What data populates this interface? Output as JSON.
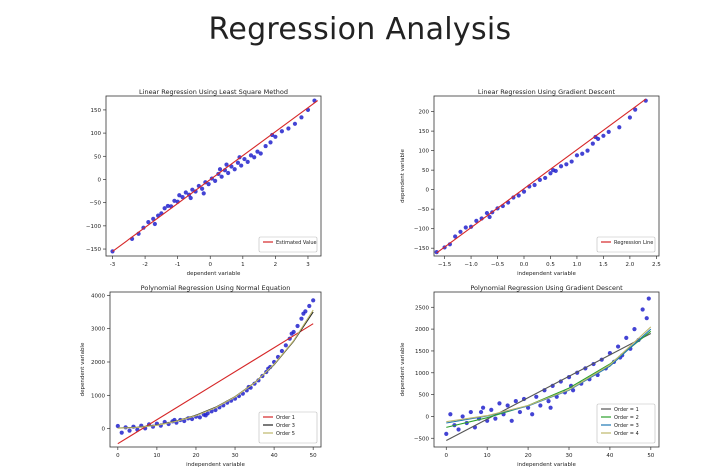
{
  "slide": {
    "title": "Regression Analysis"
  },
  "chart_data": [
    {
      "type": "scatter",
      "title": "Linear Regression Using Least Square Method",
      "xlabel": "dependent variable",
      "ylabel": "",
      "xlim": [
        -3.2,
        3.4
      ],
      "ylim": [
        -165,
        180
      ],
      "xticks": [
        -3,
        -2,
        -1,
        0,
        1,
        2,
        3
      ],
      "yticks": [
        -150,
        -100,
        -50,
        0,
        50,
        100,
        150
      ],
      "grid": false,
      "legend_position": "bottom-right",
      "points": [
        [
          -3.0,
          -155
        ],
        [
          -2.4,
          -128
        ],
        [
          -2.2,
          -117
        ],
        [
          -2.05,
          -104
        ],
        [
          -1.9,
          -92
        ],
        [
          -1.75,
          -85
        ],
        [
          -1.6,
          -78
        ],
        [
          -1.5,
          -73
        ],
        [
          -1.4,
          -62
        ],
        [
          -1.3,
          -57
        ],
        [
          -1.2,
          -58
        ],
        [
          -1.1,
          -46
        ],
        [
          -1.0,
          -48
        ],
        [
          -0.95,
          -34
        ],
        [
          -0.85,
          -38
        ],
        [
          -0.75,
          -28
        ],
        [
          -0.65,
          -33
        ],
        [
          -0.55,
          -22
        ],
        [
          -0.45,
          -26
        ],
        [
          -0.35,
          -14
        ],
        [
          -0.25,
          -20
        ],
        [
          -0.15,
          -6
        ],
        [
          -0.05,
          -10
        ],
        [
          0.05,
          2
        ],
        [
          0.15,
          -3
        ],
        [
          0.25,
          12
        ],
        [
          0.35,
          6
        ],
        [
          0.45,
          20
        ],
        [
          0.55,
          14
        ],
        [
          0.65,
          28
        ],
        [
          0.75,
          22
        ],
        [
          0.85,
          36
        ],
        [
          0.95,
          30
        ],
        [
          1.05,
          44
        ],
        [
          1.15,
          38
        ],
        [
          1.25,
          52
        ],
        [
          1.35,
          48
        ],
        [
          1.45,
          60
        ],
        [
          1.55,
          56
        ],
        [
          1.7,
          72
        ],
        [
          1.85,
          80
        ],
        [
          2.0,
          92
        ],
        [
          2.2,
          104
        ],
        [
          2.4,
          110
        ],
        [
          2.6,
          120
        ],
        [
          2.8,
          134
        ],
        [
          3.0,
          150
        ],
        [
          3.2,
          170
        ],
        [
          -0.6,
          -40
        ],
        [
          0.5,
          32
        ],
        [
          0.9,
          48
        ],
        [
          -1.7,
          -96
        ],
        [
          1.9,
          96
        ],
        [
          -0.2,
          -30
        ],
        [
          0.3,
          22
        ]
      ],
      "series": [
        {
          "name": "Estimated Value",
          "kind": "line",
          "x": [
            -3.0,
            3.3
          ],
          "y": [
            -155,
            170
          ],
          "color": "#d62728"
        }
      ],
      "point_color": "#2222cc"
    },
    {
      "type": "scatter",
      "title": "Linear Regression Using Gradient Descent",
      "xlabel": "independent variable",
      "ylabel": "dependent variable",
      "xlim": [
        -1.7,
        2.55
      ],
      "ylim": [
        -170,
        240
      ],
      "xticks": [
        -1.5,
        -1.0,
        -0.5,
        0.0,
        0.5,
        1.0,
        1.5,
        2.0,
        2.5
      ],
      "xtick_labels": [
        "−1.5",
        "−1.0",
        "−0.5",
        "0.0",
        "0.5",
        "1.0",
        "1.5",
        "2.0",
        "2.5"
      ],
      "yticks": [
        -150,
        -100,
        -50,
        0,
        50,
        100,
        150,
        200
      ],
      "grid": false,
      "legend_position": "bottom-right",
      "points": [
        [
          -1.65,
          -160
        ],
        [
          -1.5,
          -148
        ],
        [
          -1.4,
          -140
        ],
        [
          -1.3,
          -120
        ],
        [
          -1.2,
          -108
        ],
        [
          -1.1,
          -97
        ],
        [
          -1.0,
          -95
        ],
        [
          -0.9,
          -80
        ],
        [
          -0.8,
          -74
        ],
        [
          -0.7,
          -60
        ],
        [
          -0.6,
          -58
        ],
        [
          -0.5,
          -48
        ],
        [
          -0.4,
          -42
        ],
        [
          -0.3,
          -33
        ],
        [
          -0.2,
          -20
        ],
        [
          -0.1,
          -15
        ],
        [
          0.0,
          -5
        ],
        [
          0.1,
          8
        ],
        [
          0.2,
          12
        ],
        [
          0.3,
          25
        ],
        [
          0.4,
          30
        ],
        [
          0.5,
          42
        ],
        [
          0.6,
          48
        ],
        [
          0.7,
          60
        ],
        [
          0.8,
          65
        ],
        [
          0.9,
          72
        ],
        [
          1.0,
          88
        ],
        [
          1.1,
          92
        ],
        [
          1.2,
          100
        ],
        [
          1.3,
          118
        ],
        [
          1.4,
          130
        ],
        [
          1.5,
          138
        ],
        [
          1.6,
          148
        ],
        [
          1.8,
          160
        ],
        [
          2.0,
          185
        ],
        [
          2.1,
          205
        ],
        [
          2.3,
          228
        ],
        [
          -0.65,
          -70
        ],
        [
          0.55,
          50
        ],
        [
          1.35,
          135
        ]
      ],
      "series": [
        {
          "name": "Regression Line",
          "kind": "line",
          "x": [
            -1.65,
            2.3
          ],
          "y": [
            -162,
            232
          ],
          "color": "#d62728"
        }
      ],
      "point_color": "#2222cc"
    },
    {
      "type": "scatter",
      "title": "Polynomial Regression Using Normal Equation",
      "xlabel": "independent variable",
      "ylabel": "dependent variable",
      "xlim": [
        -2,
        52
      ],
      "ylim": [
        -550,
        4100
      ],
      "xticks": [
        0,
        10,
        20,
        30,
        40,
        50
      ],
      "yticks": [
        0,
        1000,
        2000,
        3000,
        4000
      ],
      "grid": false,
      "legend_position": "bottom-right",
      "points": [
        [
          0,
          80
        ],
        [
          1,
          -120
        ],
        [
          2,
          40
        ],
        [
          3,
          -60
        ],
        [
          4,
          60
        ],
        [
          5,
          -30
        ],
        [
          6,
          90
        ],
        [
          7,
          10
        ],
        [
          8,
          130
        ],
        [
          9,
          60
        ],
        [
          10,
          150
        ],
        [
          11,
          90
        ],
        [
          12,
          200
        ],
        [
          13,
          140
        ],
        [
          14,
          220
        ],
        [
          15,
          180
        ],
        [
          16,
          260
        ],
        [
          17,
          230
        ],
        [
          18,
          310
        ],
        [
          19,
          290
        ],
        [
          20,
          360
        ],
        [
          21,
          340
        ],
        [
          22,
          420
        ],
        [
          23,
          460
        ],
        [
          24,
          520
        ],
        [
          25,
          560
        ],
        [
          26,
          640
        ],
        [
          27,
          700
        ],
        [
          28,
          780
        ],
        [
          29,
          840
        ],
        [
          30,
          900
        ],
        [
          31,
          980
        ],
        [
          32,
          1050
        ],
        [
          33,
          1150
        ],
        [
          34,
          1230
        ],
        [
          35,
          1350
        ],
        [
          36,
          1450
        ],
        [
          37,
          1580
        ],
        [
          38,
          1700
        ],
        [
          39,
          1850
        ],
        [
          40,
          2000
        ],
        [
          41,
          2150
        ],
        [
          42,
          2330
        ],
        [
          43,
          2500
        ],
        [
          44,
          2700
        ],
        [
          45,
          2900
        ],
        [
          46,
          3080
        ],
        [
          47,
          3300
        ],
        [
          48,
          3520
        ],
        [
          49,
          3680
        ],
        [
          50,
          3850
        ],
        [
          33.5,
          1250
        ],
        [
          38.5,
          1800
        ],
        [
          44.5,
          2850
        ],
        [
          47.5,
          3450
        ],
        [
          14.5,
          260
        ],
        [
          22.5,
          400
        ]
      ],
      "series": [
        {
          "name": "Order 1",
          "kind": "line",
          "x": [
            0,
            50
          ],
          "y": [
            -450,
            3150
          ],
          "color": "#d62728"
        },
        {
          "name": "Order 3",
          "kind": "line",
          "x": [
            0,
            5,
            10,
            15,
            20,
            25,
            30,
            35,
            40,
            45,
            50
          ],
          "y": [
            20,
            40,
            110,
            230,
            400,
            640,
            960,
            1380,
            1920,
            2620,
            3500
          ],
          "color": "#222222"
        },
        {
          "name": "Order 5",
          "kind": "line",
          "x": [
            0,
            5,
            10,
            15,
            20,
            25,
            30,
            35,
            40,
            45,
            50
          ],
          "y": [
            15,
            35,
            100,
            220,
            390,
            630,
            950,
            1370,
            1930,
            2640,
            3560
          ],
          "color": "#bdb76b"
        }
      ],
      "point_color": "#2222cc"
    },
    {
      "type": "scatter",
      "title": "Polynomial Regression Using Gradient Descent",
      "xlabel": "independent variable",
      "ylabel": "dependent variable",
      "xlim": [
        -3,
        52
      ],
      "ylim": [
        -700,
        2850
      ],
      "xticks": [
        0,
        10,
        20,
        30,
        40,
        50
      ],
      "yticks": [
        -500,
        0,
        500,
        1000,
        1500,
        2000,
        2500
      ],
      "grid": false,
      "legend_position": "bottom-right",
      "points": [
        [
          0,
          -400
        ],
        [
          1,
          50
        ],
        [
          2,
          -200
        ],
        [
          3,
          -300
        ],
        [
          4,
          0
        ],
        [
          5,
          -150
        ],
        [
          6,
          100
        ],
        [
          7,
          -250
        ],
        [
          8,
          -50
        ],
        [
          9,
          200
        ],
        [
          10,
          -100
        ],
        [
          11,
          150
        ],
        [
          12,
          -50
        ],
        [
          13,
          300
        ],
        [
          14,
          50
        ],
        [
          15,
          250
        ],
        [
          16,
          -100
        ],
        [
          17,
          350
        ],
        [
          18,
          100
        ],
        [
          19,
          400
        ],
        [
          20,
          200
        ],
        [
          21,
          50
        ],
        [
          22,
          450
        ],
        [
          23,
          250
        ],
        [
          24,
          600
        ],
        [
          25,
          350
        ],
        [
          26,
          700
        ],
        [
          27,
          450
        ],
        [
          28,
          800
        ],
        [
          29,
          550
        ],
        [
          30,
          900
        ],
        [
          31,
          600
        ],
        [
          32,
          1000
        ],
        [
          33,
          750
        ],
        [
          34,
          1100
        ],
        [
          35,
          850
        ],
        [
          36,
          1200
        ],
        [
          37,
          950
        ],
        [
          38,
          1300
        ],
        [
          39,
          1100
        ],
        [
          40,
          1450
        ],
        [
          41,
          1250
        ],
        [
          42,
          1600
        ],
        [
          43,
          1400
        ],
        [
          44,
          1800
        ],
        [
          45,
          1550
        ],
        [
          46,
          2000
        ],
        [
          47,
          1750
        ],
        [
          48,
          2450
        ],
        [
          49,
          2250
        ],
        [
          49.5,
          2700
        ],
        [
          25.5,
          200
        ],
        [
          30.5,
          700
        ],
        [
          8.5,
          100
        ],
        [
          42.5,
          1350
        ]
      ],
      "series": [
        {
          "name": "Order = 1",
          "kind": "line",
          "x": [
            0,
            50
          ],
          "y": [
            -550,
            1900
          ],
          "color": "#555555"
        },
        {
          "name": "Order = 2",
          "kind": "line",
          "x": [
            0,
            10,
            20,
            30,
            40,
            50
          ],
          "y": [
            -250,
            -30,
            250,
            650,
            1200,
            1950
          ],
          "color": "#2ca02c"
        },
        {
          "name": "Order = 3",
          "kind": "line",
          "x": [
            0,
            10,
            20,
            30,
            40,
            50
          ],
          "y": [
            -150,
            10,
            240,
            600,
            1150,
            2000
          ],
          "color": "#1f77b4"
        },
        {
          "name": "Order = 4",
          "kind": "line",
          "x": [
            0,
            10,
            20,
            30,
            40,
            50
          ],
          "y": [
            -120,
            20,
            250,
            610,
            1180,
            2050
          ],
          "color": "#bdb76b"
        }
      ],
      "point_color": "#2222cc"
    }
  ]
}
